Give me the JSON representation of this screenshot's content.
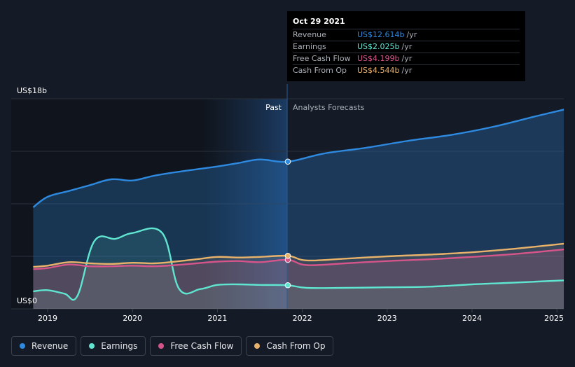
{
  "chart_data": {
    "type": "area",
    "y_axis": {
      "top_label": "US$18b",
      "bottom_label": "US$0",
      "ylim": [
        0,
        18
      ]
    },
    "x_axis": {
      "ticks": [
        "2019",
        "2020",
        "2021",
        "2022",
        "2023",
        "2024",
        "2025"
      ]
    },
    "divider": {
      "past_label": "Past",
      "forecast_label": "Analysts Forecasts",
      "x": 2021.83
    },
    "series": [
      {
        "name": "Revenue",
        "color": "#2d8ae0",
        "x": [
          2018.83,
          2019.0,
          2019.25,
          2019.5,
          2019.75,
          2020.0,
          2020.25,
          2020.5,
          2020.75,
          2021.0,
          2021.25,
          2021.5,
          2021.83,
          2022.25,
          2022.75,
          2023.25,
          2023.75,
          2024.25,
          2024.75,
          2025.1
        ],
        "values": [
          8.7,
          9.6,
          10.1,
          10.6,
          11.1,
          11.0,
          11.4,
          11.7,
          11.95,
          12.2,
          12.5,
          12.8,
          12.614,
          13.3,
          13.8,
          14.4,
          14.9,
          15.6,
          16.5,
          17.1
        ]
      },
      {
        "name": "Earnings",
        "color": "#5fe5d0",
        "x": [
          2018.83,
          2019.0,
          2019.2,
          2019.35,
          2019.55,
          2019.8,
          2020.0,
          2020.35,
          2020.55,
          2020.8,
          2021.0,
          2021.25,
          2021.5,
          2021.83,
          2022.05,
          2022.5,
          2023.0,
          2023.5,
          2024.0,
          2024.5,
          2025.1
        ],
        "values": [
          1.5,
          1.6,
          1.3,
          1.1,
          5.8,
          6.0,
          6.5,
          6.5,
          1.7,
          1.7,
          2.05,
          2.1,
          2.05,
          2.025,
          1.8,
          1.8,
          1.85,
          1.9,
          2.1,
          2.25,
          2.45
        ]
      },
      {
        "name": "Free Cash Flow",
        "color": "#d5558a",
        "x": [
          2018.83,
          2019.0,
          2019.25,
          2019.5,
          2019.75,
          2020.0,
          2020.25,
          2020.5,
          2020.75,
          2021.0,
          2021.25,
          2021.5,
          2021.83,
          2022.05,
          2022.5,
          2023.0,
          2023.5,
          2024.0,
          2024.5,
          2025.1
        ],
        "values": [
          3.4,
          3.5,
          3.8,
          3.65,
          3.65,
          3.7,
          3.65,
          3.75,
          3.9,
          4.05,
          4.1,
          4.0,
          4.199,
          3.75,
          3.9,
          4.1,
          4.25,
          4.45,
          4.7,
          5.1
        ]
      },
      {
        "name": "Cash From Op",
        "color": "#e8b26a",
        "x": [
          2018.83,
          2019.0,
          2019.25,
          2019.5,
          2019.75,
          2020.0,
          2020.25,
          2020.5,
          2020.75,
          2021.0,
          2021.25,
          2021.5,
          2021.83,
          2022.05,
          2022.5,
          2023.0,
          2023.5,
          2024.0,
          2024.5,
          2025.1
        ],
        "values": [
          3.6,
          3.7,
          4.0,
          3.9,
          3.85,
          3.95,
          3.9,
          4.05,
          4.25,
          4.45,
          4.4,
          4.45,
          4.544,
          4.15,
          4.3,
          4.5,
          4.65,
          4.85,
          5.15,
          5.6
        ]
      }
    ]
  },
  "tooltip": {
    "date": "Oct 29 2021",
    "rows": [
      {
        "label": "Revenue",
        "value": "US$12.614b",
        "unit": "/yr",
        "color": "#2d8ae0"
      },
      {
        "label": "Earnings",
        "value": "US$2.025b",
        "unit": "/yr",
        "color": "#5fe5d0"
      },
      {
        "label": "Free Cash Flow",
        "value": "US$4.199b",
        "unit": "/yr",
        "color": "#d5558a"
      },
      {
        "label": "Cash From Op",
        "value": "US$4.544b",
        "unit": "/yr",
        "color": "#e8b26a"
      }
    ]
  },
  "legend": [
    {
      "label": "Revenue",
      "color": "#2d8ae0"
    },
    {
      "label": "Earnings",
      "color": "#5fe5d0"
    },
    {
      "label": "Free Cash Flow",
      "color": "#d5558a"
    },
    {
      "label": "Cash From Op",
      "color": "#e8b26a"
    }
  ]
}
